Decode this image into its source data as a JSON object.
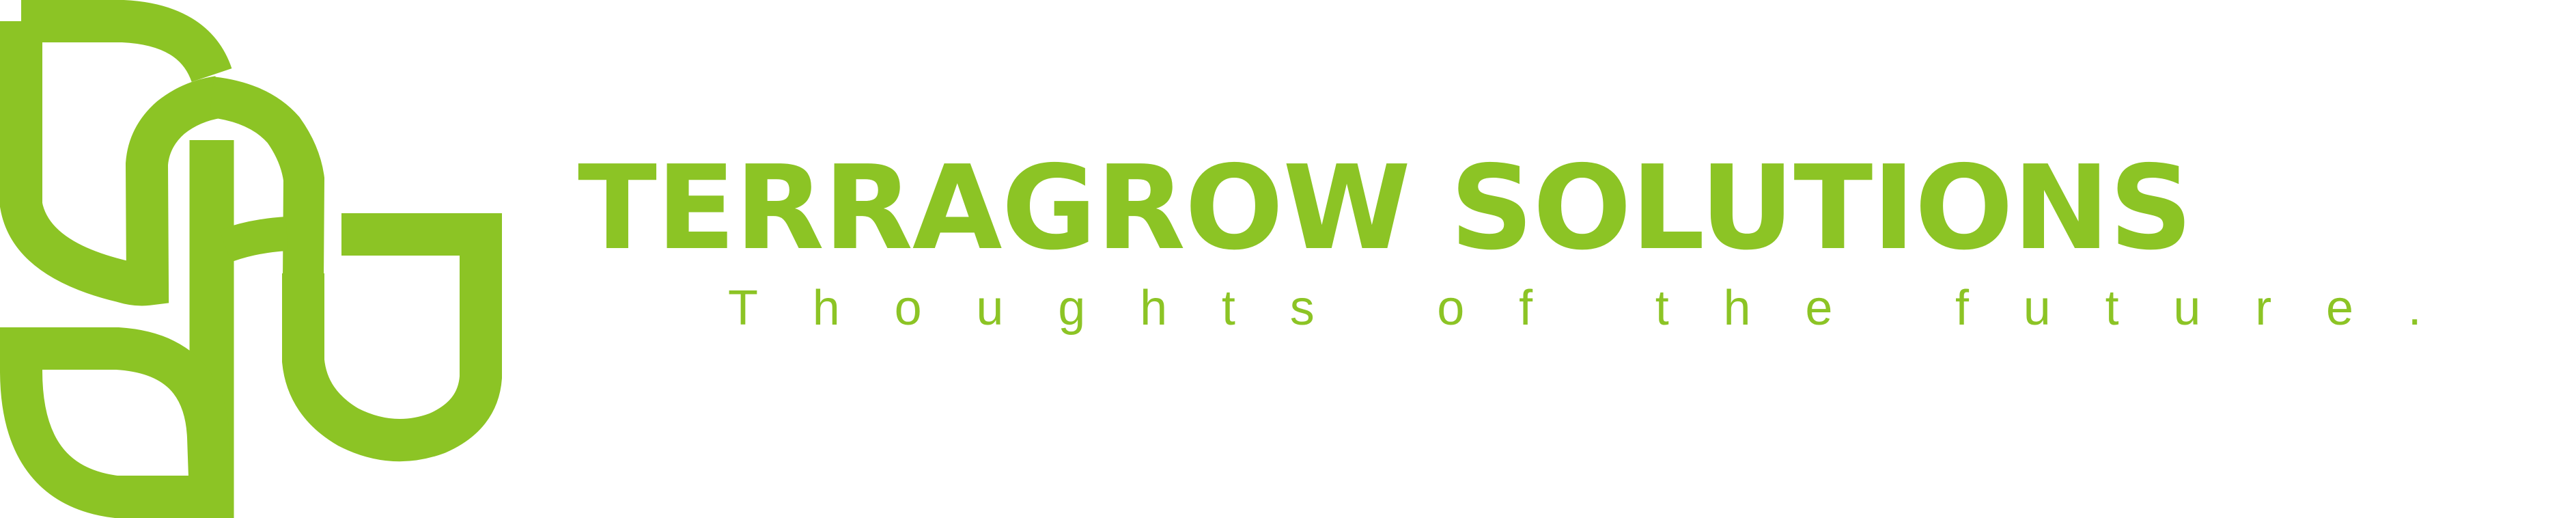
{
  "colors": {
    "brand": "#8cc425"
  },
  "logo": {
    "icon": "leaf-sprout-monogram-icon"
  },
  "brand": {
    "name": "TERRAGROW SOLUTIONS",
    "tagline": "Thoughts of the future."
  }
}
